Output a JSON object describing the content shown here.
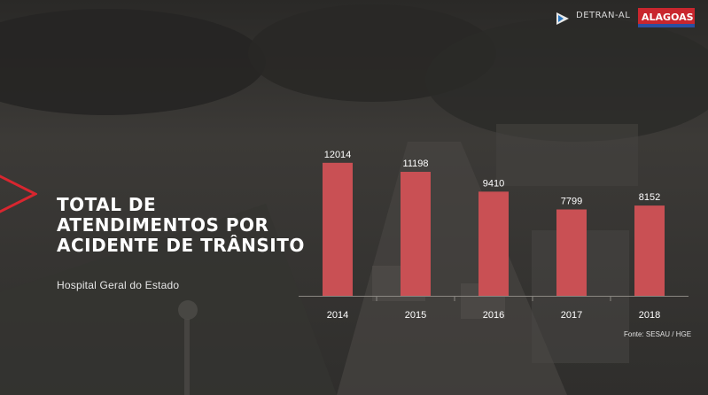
{
  "header": {
    "logo_detran": "DETRAN-AL",
    "logo_alagoas": "ALAGOAS"
  },
  "title": "TOTAL DE ATENDIMENTOS POR ACIDENTE DE TRÂNSITO",
  "subtitle": "Hospital Geral do Estado",
  "source": "Fonte: SESAU / HGE",
  "colors": {
    "bar": "#c95054",
    "accent": "#d8262f",
    "background": "#3a3835"
  },
  "chart_data": {
    "type": "bar",
    "categories": [
      "2014",
      "2015",
      "2016",
      "2017",
      "2018"
    ],
    "values": [
      12014,
      11198,
      9410,
      7799,
      8152
    ],
    "title": "",
    "xlabel": "",
    "ylabel": "",
    "ylim": [
      0,
      13600
    ],
    "grid": false,
    "legend": "none"
  }
}
